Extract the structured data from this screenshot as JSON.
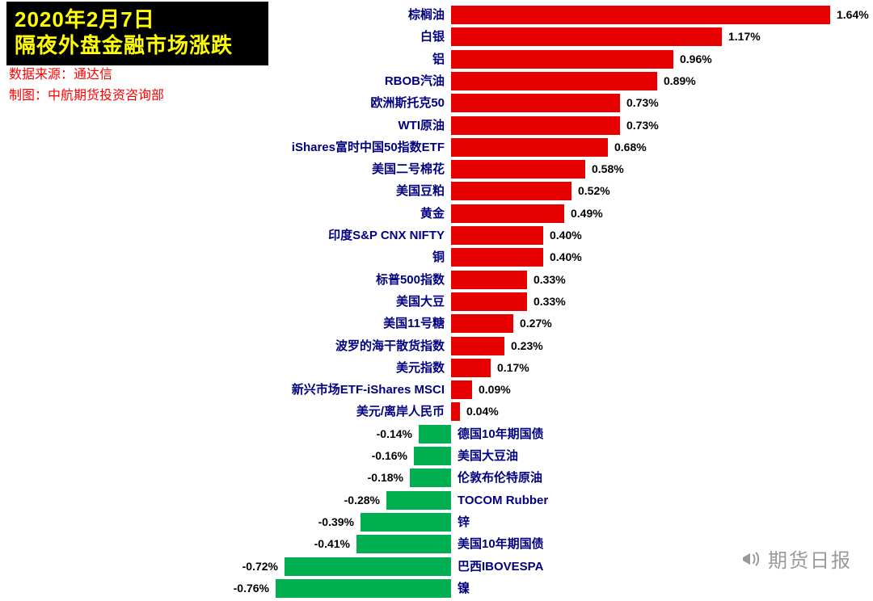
{
  "header": {
    "title_line1": "2020年2月7日",
    "title_line2": "隔夜外盘金融市场涨跌",
    "source_line1": "数据来源：通达信",
    "source_line2": "制图：中航期货投资咨询部"
  },
  "watermark": {
    "text": "期货日报"
  },
  "colors": {
    "positive": "#e60000",
    "negative": "#00b050",
    "title_bg": "#000000",
    "title_fg": "#ffff00",
    "source_fg": "#ff0000",
    "label_fg": "#000080",
    "value_fg": "#000000"
  },
  "chart_data": {
    "type": "bar",
    "orientation": "horizontal",
    "title": "隔夜外盘金融市场涨跌",
    "subtitle": "2020年2月7日",
    "legend": null,
    "grid": false,
    "xlim": [
      -0.9,
      1.75
    ],
    "categories": [
      "棕榈油",
      "白银",
      "铝",
      "RBOB汽油",
      "欧洲斯托克50",
      "WTI原油",
      "iShares富时中国50指数ETF",
      "美国二号棉花",
      "美国豆粕",
      "黄金",
      "印度S&P CNX NIFTY",
      "铜",
      "标普500指数",
      "美国大豆",
      "美国11号糖",
      "波罗的海干散货指数",
      "美元指数",
      "新兴市场ETF-iShares MSCI",
      "美元/离岸人民币",
      "德国10年期国债",
      "美国大豆油",
      "伦敦布伦特原油",
      "TOCOM Rubber",
      "锌",
      "美国10年期国债",
      "巴西IBOVESPA",
      "镍"
    ],
    "values": [
      1.64,
      1.17,
      0.96,
      0.89,
      0.73,
      0.73,
      0.68,
      0.58,
      0.52,
      0.49,
      0.4,
      0.4,
      0.33,
      0.33,
      0.27,
      0.23,
      0.17,
      0.09,
      0.04,
      -0.14,
      -0.16,
      -0.18,
      -0.28,
      -0.39,
      -0.41,
      -0.72,
      -0.76
    ],
    "value_labels": [
      "1.64%",
      "1.17%",
      "0.96%",
      "0.89%",
      "0.73%",
      "0.73%",
      "0.68%",
      "0.58%",
      "0.52%",
      "0.49%",
      "0.40%",
      "0.40%",
      "0.33%",
      "0.33%",
      "0.27%",
      "0.23%",
      "0.17%",
      "0.09%",
      "0.04%",
      "-0.14%",
      "-0.16%",
      "-0.18%",
      "-0.28%",
      "-0.39%",
      "-0.41%",
      "-0.72%",
      "-0.76%"
    ]
  }
}
